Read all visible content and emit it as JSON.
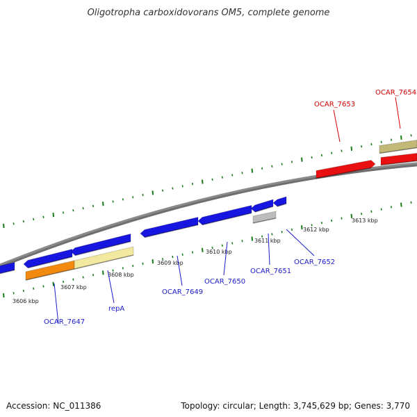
{
  "title": "Oligotropha carboxidovorans OM5, complete genome",
  "footer": {
    "accession": "Accession: NC_011386",
    "topology": "Topology: circular; Length: 3,745,629 bp; Genes: 3,770"
  },
  "colors": {
    "backbone": "#8a8a8a",
    "tick": "#1a7a1a",
    "forward_label": "#d40000",
    "reverse_label": "#1a1acc",
    "gene_blue": "#1616e0",
    "gene_red": "#e81010",
    "gene_orange": "#f28a10",
    "gene_pale": "#f3e8a0",
    "gene_khaki": "#c2b878",
    "gene_gray": "#bdbdbd"
  },
  "scale_labels": [
    "3606 kbp",
    "3607 kbp",
    "3608 kbp",
    "3609 kbp",
    "3610 kbp",
    "3611 kbp",
    "3612 kbp",
    "3613 kbp"
  ],
  "genes": [
    {
      "id": "g-left-edge",
      "strand": "reverse",
      "ring": 1,
      "color": "gene_blue"
    },
    {
      "id": "g-blue-1",
      "strand": "reverse",
      "ring": 1,
      "color": "gene_blue"
    },
    {
      "id": "g-blue-2",
      "strand": "reverse",
      "ring": 1,
      "color": "gene_blue"
    },
    {
      "id": "g-blue-3",
      "strand": "reverse",
      "ring": 1,
      "color": "gene_blue"
    },
    {
      "id": "g-blue-4",
      "strand": "reverse",
      "ring": 1,
      "color": "gene_blue"
    },
    {
      "id": "g-blue-5",
      "strand": "reverse",
      "ring": 1,
      "color": "gene_blue"
    },
    {
      "id": "g-blue-6",
      "strand": "reverse",
      "ring": 1,
      "color": "gene_blue"
    },
    {
      "id": "g-orange",
      "strand": "reverse",
      "ring": 2,
      "color": "gene_orange"
    },
    {
      "id": "g-repA",
      "strand": "reverse",
      "ring": 2,
      "color": "gene_pale"
    },
    {
      "id": "g-gray",
      "strand": "reverse",
      "ring": 2,
      "color": "gene_gray"
    },
    {
      "id": "g-red-1",
      "strand": "forward",
      "ring": 1,
      "color": "gene_red"
    },
    {
      "id": "g-red-2",
      "strand": "forward",
      "ring": 1,
      "color": "gene_red"
    },
    {
      "id": "g-khaki",
      "strand": "forward",
      "ring": 2,
      "color": "gene_khaki"
    }
  ],
  "gene_labels": [
    {
      "text": "OCAR_7647",
      "strand": "reverse"
    },
    {
      "text": "repA",
      "strand": "reverse"
    },
    {
      "text": "OCAR_7649",
      "strand": "reverse"
    },
    {
      "text": "OCAR_7650",
      "strand": "reverse"
    },
    {
      "text": "OCAR_7651",
      "strand": "reverse"
    },
    {
      "text": "OCAR_7652",
      "strand": "reverse"
    },
    {
      "text": "OCAR_7653",
      "strand": "forward"
    },
    {
      "text": "OCAR_7654",
      "strand": "forward"
    }
  ]
}
